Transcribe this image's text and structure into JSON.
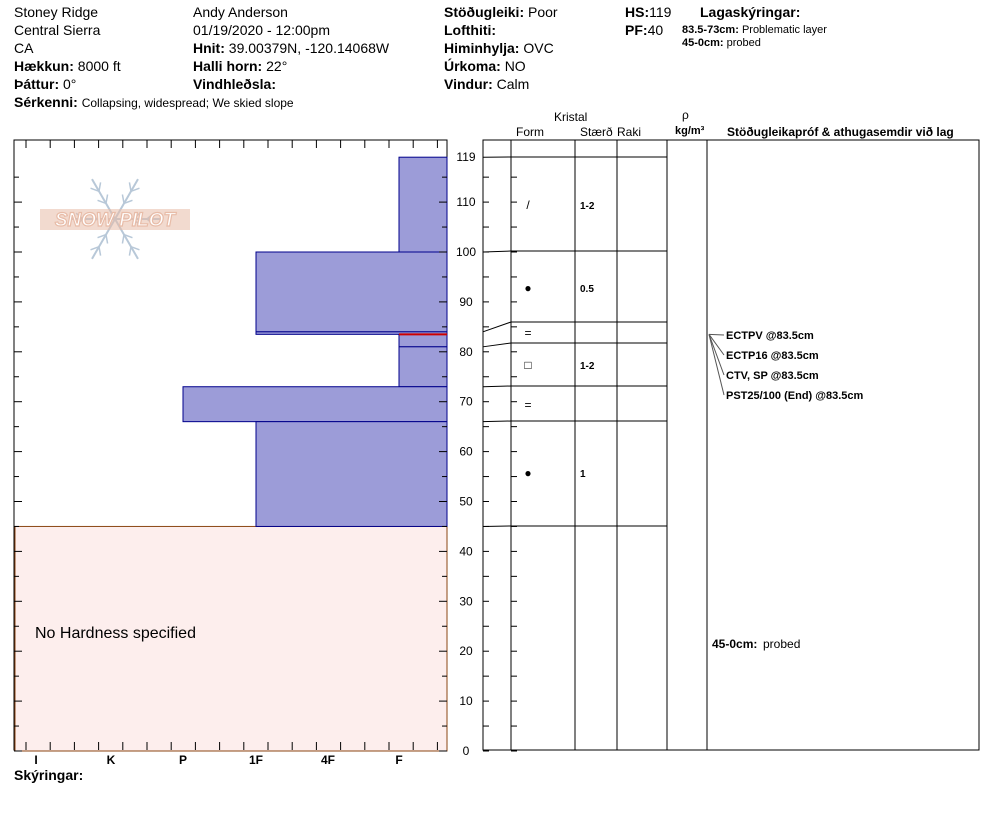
{
  "header": {
    "location": "Stoney Ridge",
    "range": "Central Sierra",
    "state": "CA",
    "elevation_label": "Hækkun:",
    "elevation_value": "8000 ft",
    "aspect_label": "Þáttur:",
    "aspect_value": "0°",
    "features_label": "Sérkenni:",
    "features_value": "Collapsing, widespread;  We skied slope",
    "observer": "Andy Anderson",
    "datetime": "01/19/2020 - 12:00pm",
    "coords_label": "Hnit:",
    "coords_value": "39.00379N, -120.14068W",
    "slope_label": "Halli horn:",
    "slope_value": "22°",
    "wind_loading_label": "Vindhleðsla:",
    "wind_loading_value": "",
    "stability_label": "Stöðugleiki:",
    "stability_value": "Poor",
    "airtemp_label": "Lofthiti:",
    "airtemp_value": "",
    "sky_label": "Himinhylja:",
    "sky_value": "OVC",
    "precip_label": "Úrkoma:",
    "precip_value": "NO",
    "wind_label": "Vindur:",
    "wind_value": "Calm",
    "hs_label": "HS:",
    "hs_value": "119",
    "pf_label": "PF:",
    "pf_value": "40",
    "legend_title": "Lagaskýringar:",
    "legend_items": [
      {
        "range": "83.5-73cm:",
        "text": "Problematic layer"
      },
      {
        "range": "45-0cm:",
        "text": "probed"
      }
    ]
  },
  "footer": {
    "notes_label": "Skýringar:"
  },
  "chart_data": {
    "type": "snow-profile",
    "logo_text": "SNOW PILOT",
    "hardness_scale": [
      "I",
      "K",
      "P",
      "1F",
      "4F",
      "F"
    ],
    "depth_ticks": [
      "0",
      "10",
      "20",
      "30",
      "40",
      "50",
      "60",
      "70",
      "80",
      "90",
      "100",
      "110",
      "119"
    ],
    "ylim": [
      0,
      119
    ],
    "no_hardness_text": "No Hardness specified",
    "no_hardness_range": [
      0,
      45
    ],
    "layers": [
      {
        "top": 119,
        "bottom": 100,
        "hardness": "F",
        "form": "/",
        "size": "1-2"
      },
      {
        "top": 100,
        "bottom": 84,
        "hardness": "1F",
        "form": "●",
        "size": "0.5"
      },
      {
        "top": 84,
        "bottom": 83.5,
        "hardness": "1F",
        "form": "",
        "size": ""
      },
      {
        "top": 83.5,
        "bottom": 81,
        "hardness": "F",
        "form": "=",
        "size": ""
      },
      {
        "top": 81,
        "bottom": 73,
        "hardness": "F",
        "form": "□",
        "size": "1-2"
      },
      {
        "top": 73,
        "bottom": 66,
        "hardness": "P",
        "form": "=",
        "size": ""
      },
      {
        "top": 66,
        "bottom": 45,
        "hardness": "1F",
        "form": "●",
        "size": "1"
      }
    ],
    "problem_layer_depth": 83.5,
    "columns": {
      "crystal_header": "Kristal",
      "form_header": "Form",
      "size_header": "Stærð",
      "moisture_header": "Raki",
      "density_symbol": "ρ",
      "density_unit": "kg/m³",
      "tests_header": "Stöðugleikapróf & athugasemdir við lag"
    },
    "tests": [
      "ECTPV @83.5cm",
      "ECTP16 @83.5cm",
      "CTV, SP @83.5cm",
      "PST25/100 (End) @83.5cm"
    ],
    "comment": {
      "label": "45-0cm:",
      "text": "probed",
      "depth": 22.5
    }
  },
  "colors": {
    "layer_fill": "#9c9cd8",
    "layer_stroke": "#00008b",
    "no_hardness_fill": "#fdeeed",
    "no_hardness_stroke": "#8b4513",
    "problem_line": "#cc0000",
    "logo_text": "#e8bca8",
    "logo_flake": "#b8c8d8"
  }
}
